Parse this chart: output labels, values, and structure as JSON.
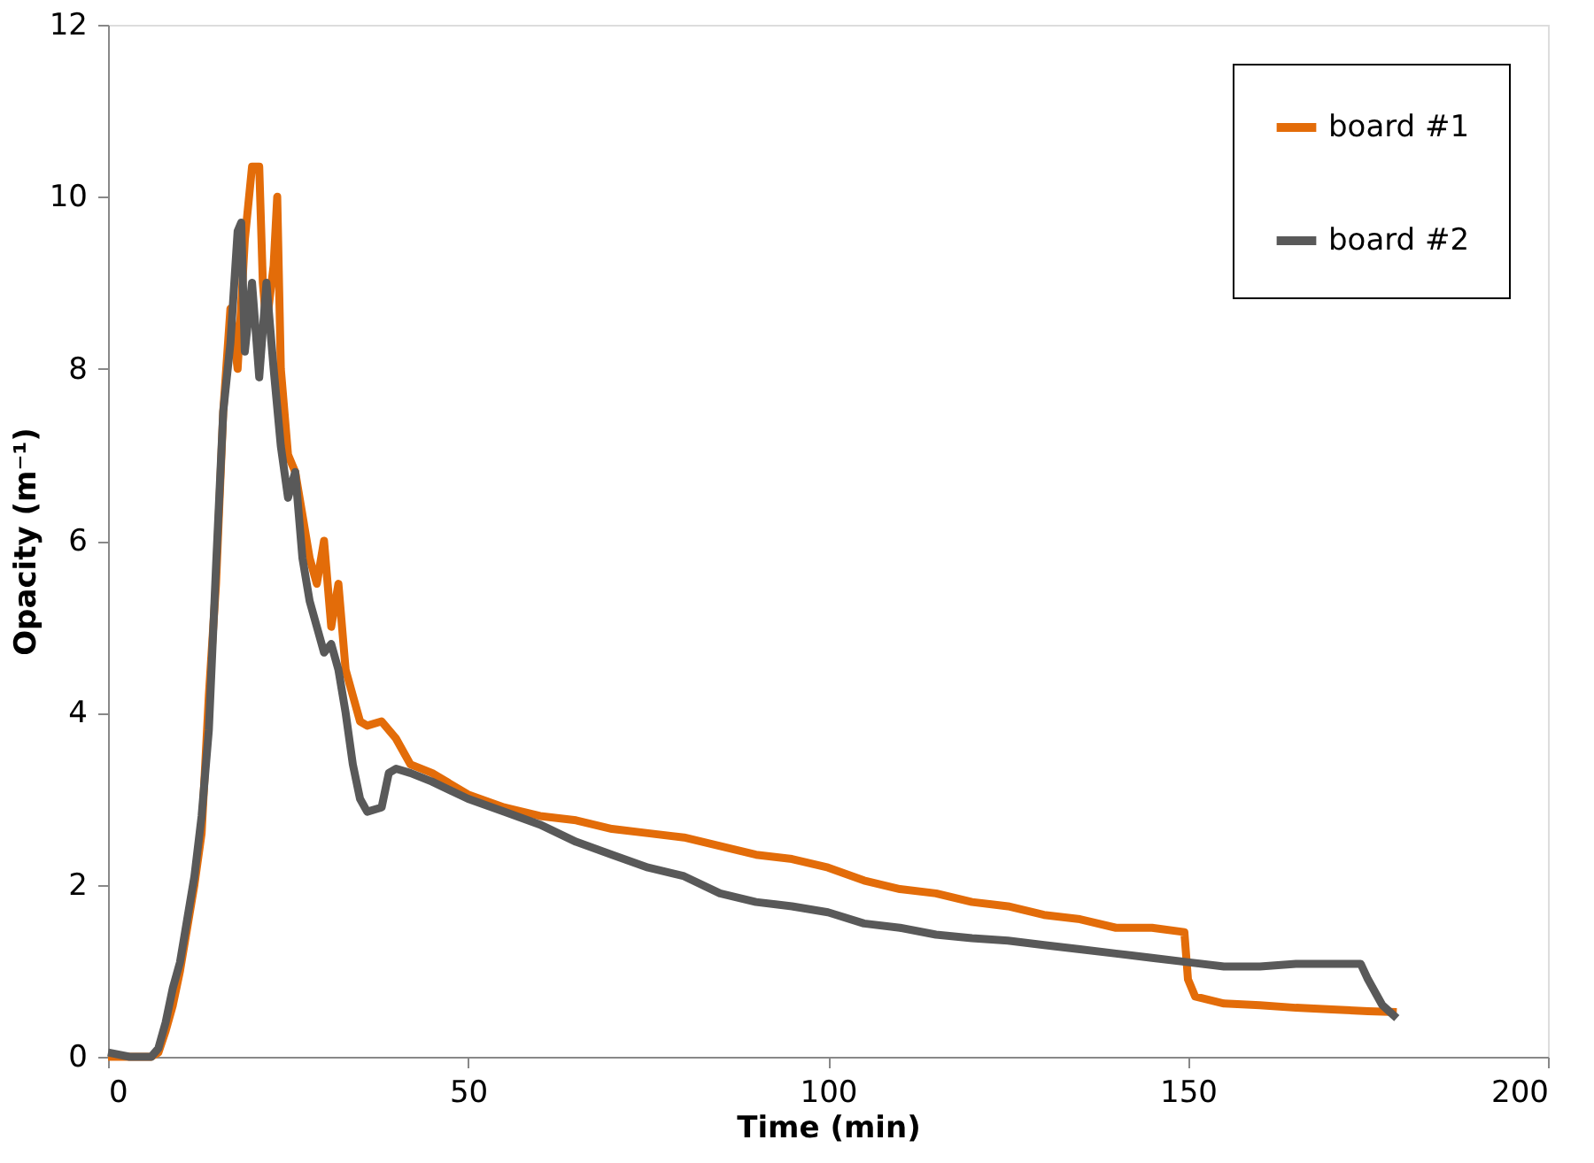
{
  "chart_data": {
    "type": "line",
    "xlabel": "Time (min)",
    "ylabel": "Opacity (m⁻¹)",
    "xlim": [
      0,
      200
    ],
    "xticks": [
      0,
      50,
      100,
      150,
      200
    ],
    "ylim": [
      0,
      12
    ],
    "yticks": [
      0,
      2,
      4,
      6,
      8,
      10,
      12
    ],
    "grid": false,
    "legend": "top right",
    "marker": "none",
    "line_style": "solid",
    "series": [
      {
        "name": "board #1",
        "color": "#e36c09",
        "x": [
          0,
          2,
          4,
          6,
          7,
          8,
          9,
          10,
          11,
          12,
          13,
          14,
          15,
          16,
          17,
          18,
          19,
          20,
          21,
          21.5,
          22,
          23,
          23.5,
          24,
          25,
          26,
          27,
          28,
          29,
          30,
          31,
          32,
          33,
          34,
          35,
          36,
          38,
          40,
          42,
          45,
          50,
          55,
          60,
          65,
          70,
          75,
          80,
          85,
          90,
          95,
          100,
          105,
          110,
          115,
          120,
          125,
          130,
          135,
          140,
          145,
          149.5,
          150,
          151,
          155,
          160,
          165,
          170,
          175,
          179
        ],
        "values": [
          0,
          0,
          0,
          0,
          0.05,
          0.3,
          0.6,
          1.0,
          1.5,
          2.0,
          2.6,
          4.2,
          5.5,
          7.5,
          8.7,
          8.0,
          9.5,
          10.35,
          10.35,
          9.0,
          8.5,
          9.2,
          10.0,
          8.0,
          7.0,
          6.8,
          6.3,
          5.8,
          5.5,
          6.0,
          5.0,
          5.5,
          4.5,
          4.2,
          3.9,
          3.85,
          3.9,
          3.7,
          3.4,
          3.3,
          3.05,
          2.9,
          2.8,
          2.75,
          2.65,
          2.6,
          2.55,
          2.45,
          2.35,
          2.3,
          2.2,
          2.05,
          1.95,
          1.9,
          1.8,
          1.75,
          1.65,
          1.6,
          1.5,
          1.5,
          1.45,
          0.9,
          0.7,
          0.62,
          0.6,
          0.57,
          0.55,
          0.53,
          0.52
        ]
      },
      {
        "name": "board #2",
        "color": "#595959",
        "x": [
          0,
          3,
          6,
          7,
          8,
          9,
          10,
          11,
          12,
          13,
          14,
          15,
          16,
          17,
          18,
          18.5,
          19,
          20,
          21,
          22,
          23,
          24,
          25,
          26,
          27,
          28,
          29,
          30,
          31,
          32,
          33,
          34,
          35,
          36,
          38,
          39,
          40,
          42,
          45,
          50,
          55,
          60,
          65,
          70,
          75,
          80,
          85,
          90,
          95,
          100,
          105,
          110,
          115,
          120,
          125,
          130,
          135,
          140,
          145,
          150,
          155,
          160,
          165,
          170,
          174,
          175,
          177,
          179
        ],
        "values": [
          0.05,
          0,
          0,
          0.1,
          0.4,
          0.8,
          1.1,
          1.6,
          2.1,
          2.8,
          3.8,
          5.7,
          7.5,
          8.3,
          9.6,
          9.7,
          8.2,
          9.0,
          7.9,
          9.0,
          8.0,
          7.1,
          6.5,
          6.8,
          5.8,
          5.3,
          5.0,
          4.7,
          4.8,
          4.5,
          4.0,
          3.4,
          3.0,
          2.85,
          2.9,
          3.3,
          3.35,
          3.3,
          3.2,
          3.0,
          2.85,
          2.7,
          2.5,
          2.35,
          2.2,
          2.1,
          1.9,
          1.8,
          1.75,
          1.68,
          1.55,
          1.5,
          1.42,
          1.38,
          1.35,
          1.3,
          1.25,
          1.2,
          1.15,
          1.1,
          1.05,
          1.05,
          1.08,
          1.08,
          1.08,
          0.9,
          0.6,
          0.45
        ]
      }
    ]
  }
}
